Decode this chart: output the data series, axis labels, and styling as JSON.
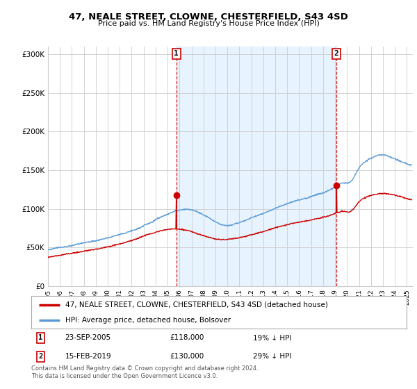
{
  "title": "47, NEALE STREET, CLOWNE, CHESTERFIELD, S43 4SD",
  "subtitle": "Price paid vs. HM Land Registry's House Price Index (HPI)",
  "ylim": [
    0,
    310000
  ],
  "yticks": [
    0,
    50000,
    100000,
    150000,
    200000,
    250000,
    300000
  ],
  "ytick_labels": [
    "£0",
    "£50K",
    "£100K",
    "£150K",
    "£200K",
    "£250K",
    "£300K"
  ],
  "hpi_color": "#5b9bd5",
  "hpi_fill_color": "#ddeeff",
  "price_color": "#cc0000",
  "vline_color": "#cc0000",
  "grid_color": "#cccccc",
  "bg_color": "#ffffff",
  "legend_label_price": "47, NEALE STREET, CLOWNE, CHESTERFIELD, S43 4SD (detached house)",
  "legend_label_hpi": "HPI: Average price, detached house, Bolsover",
  "marker1_year": 2005.73,
  "marker1_price": 118000,
  "marker2_year": 2019.12,
  "marker2_price": 130000,
  "footnote": "Contains HM Land Registry data © Crown copyright and database right 2024.\nThis data is licensed under the Open Government Licence v3.0.",
  "xmin": 1995.0,
  "xmax": 2025.5
}
